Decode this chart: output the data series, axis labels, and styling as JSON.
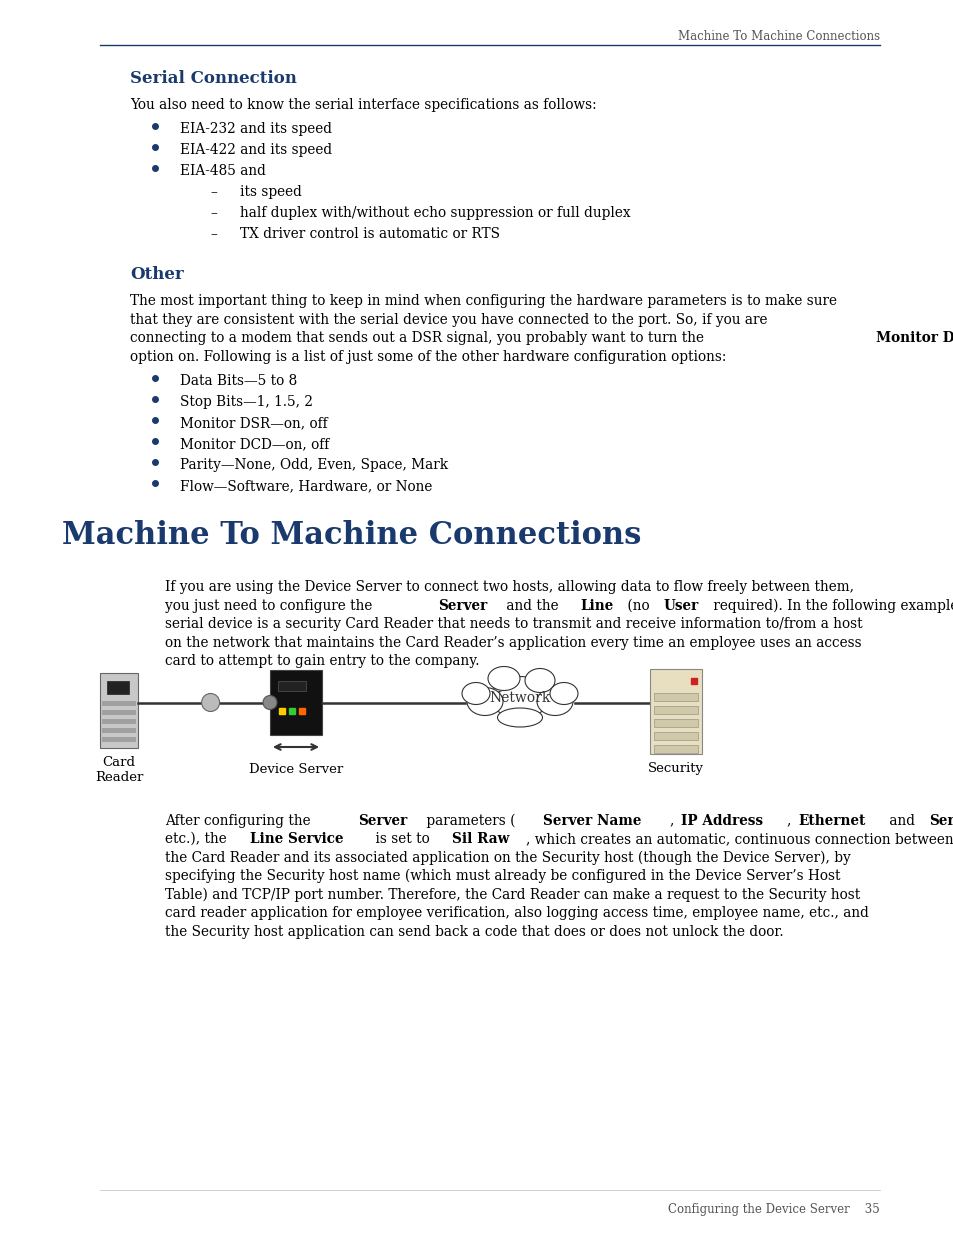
{
  "page_width": 9.54,
  "page_height": 12.35,
  "bg_color": "#ffffff",
  "header_text": "Machine To Machine Connections",
  "header_color": "#555555",
  "top_rule_color": "#1a3a6e",
  "section1_title": "Serial Connection",
  "section1_title_color": "#1a3a6e",
  "section1_intro": "You also need to know the serial interface specifications as follows:",
  "section1_bullets": [
    "EIA-232 and its speed",
    "EIA-422 and its speed",
    "EIA-485 and"
  ],
  "section1_subbullets": [
    "its speed",
    "half duplex with/without echo suppression or full duplex",
    "TX driver control is automatic or RTS"
  ],
  "section2_title": "Other",
  "section2_title_color": "#1a3a6e",
  "section2_para_lines": [
    "The most important thing to keep in mind when configuring the hardware parameters is to make sure",
    "that they are consistent with the serial device you have connected to the port. So, if you are",
    "connecting to a modem that sends out a DSR signal, you probably want to turn the |Monitor DSR|",
    "option on. Following is a list of just some of the other hardware configuration options:"
  ],
  "section2_bullets": [
    "Data Bits—5 to 8",
    "Stop Bits—1, 1.5, 2",
    "Monitor DSR—on, off",
    "Monitor DCD—on, off",
    "Parity—None, Odd, Even, Space, Mark",
    "Flow—Software, Hardware, or None"
  ],
  "section3_title": "Machine To Machine Connections",
  "section3_title_color": "#1a3a6e",
  "section3_para_lines": [
    "If you are using the Device Server to connect two hosts, allowing data to flow freely between them,",
    "you just need to configure the |Server| and the |Line| (no |User| required). In the following example, the",
    "serial device is a security Card Reader that needs to transmit and receive information to/from a host",
    "on the network that maintains the Card Reader’s application every time an employee uses an access",
    "card to attempt to gain entry to the company."
  ],
  "after_lines": [
    "After configuring the |Server| parameters (|Server Name|, |IP Address|, |Ethernet| and |Serial| interfaces,",
    "etc.), the |Line Service| is set to |Sil Raw|, which creates an automatic, continuous connection between",
    "the Card Reader and its associated application on the Security host (though the Device Server), by",
    "specifying the Security host name (which must already be configured in the Device Server’s Host",
    "Table) and TCP/IP port number. Therefore, the Card Reader can make a request to the Security host",
    "card reader application for employee verification, also logging access time, employee name, etc., and",
    "the Security host application can send back a code that does or does not unlock the door."
  ],
  "footer_text": "Configuring the Device Server    35",
  "bullet_color": "#1a3a6e",
  "body_fs": 9.8,
  "small_fs": 8.5
}
